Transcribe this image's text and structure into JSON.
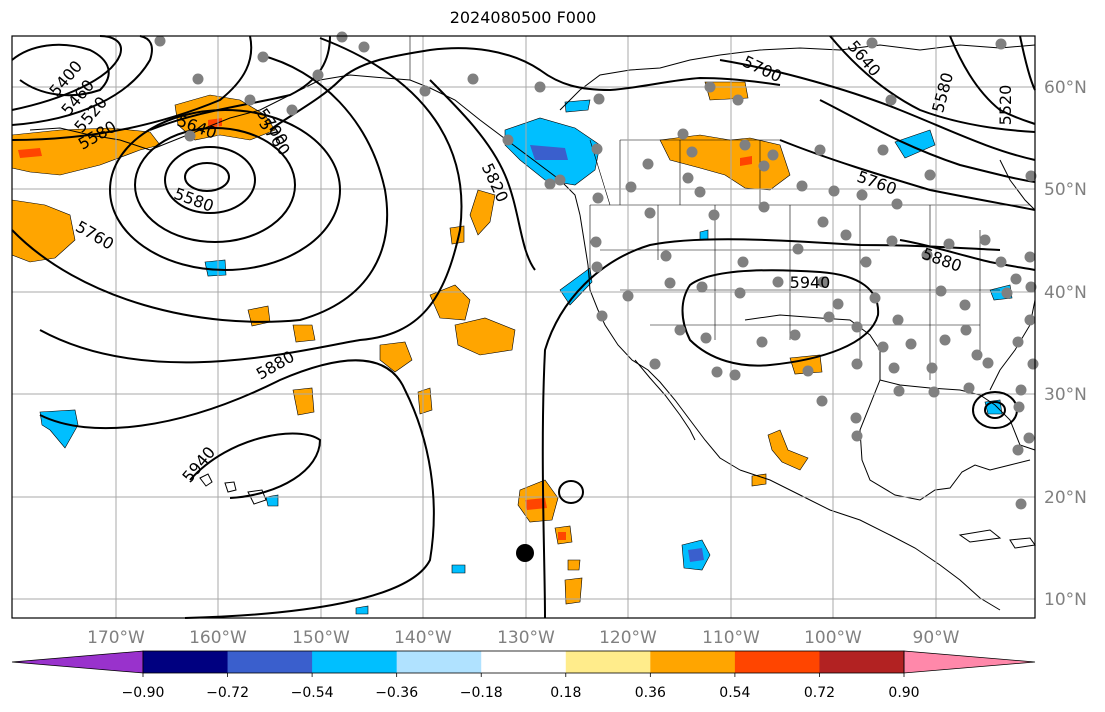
{
  "title": "2024080500 F000",
  "axes": {
    "lon_ticks": [
      "170°W",
      "160°W",
      "150°W",
      "140°W",
      "130°W",
      "120°W",
      "110°W",
      "100°W",
      "90°W"
    ],
    "lat_ticks": [
      "60°N",
      "50°N",
      "40°N",
      "30°N",
      "20°N",
      "10°N"
    ],
    "tick_color": "#808080"
  },
  "contours": {
    "labels": [
      "5400",
      "5460",
      "5520",
      "5580",
      "5640",
      "5700",
      "5760",
      "5580",
      "5760",
      "5820",
      "5880",
      "5940",
      "5700",
      "5640",
      "5580",
      "5520",
      "5760",
      "5880",
      "5940"
    ]
  },
  "colorbar": {
    "ticks": [
      "−0.90",
      "−0.72",
      "−0.54",
      "−0.36",
      "−0.18",
      "0.18",
      "0.36",
      "0.54",
      "0.72",
      "0.90"
    ],
    "colors": [
      "#9932cc",
      "#000080",
      "#3a5fcd",
      "#00bfff",
      "#b0e2ff",
      "#ffffff",
      "#ffec8b",
      "#ffa500",
      "#ff4500",
      "#b22222",
      "#ff88aa"
    ]
  },
  "legend_colors": {
    "positive_mid": "#ffa500",
    "positive_high": "#ff4500",
    "negative_mid": "#00bfff",
    "negative_low": "#3a5fcd",
    "station_marker": "#808080"
  }
}
